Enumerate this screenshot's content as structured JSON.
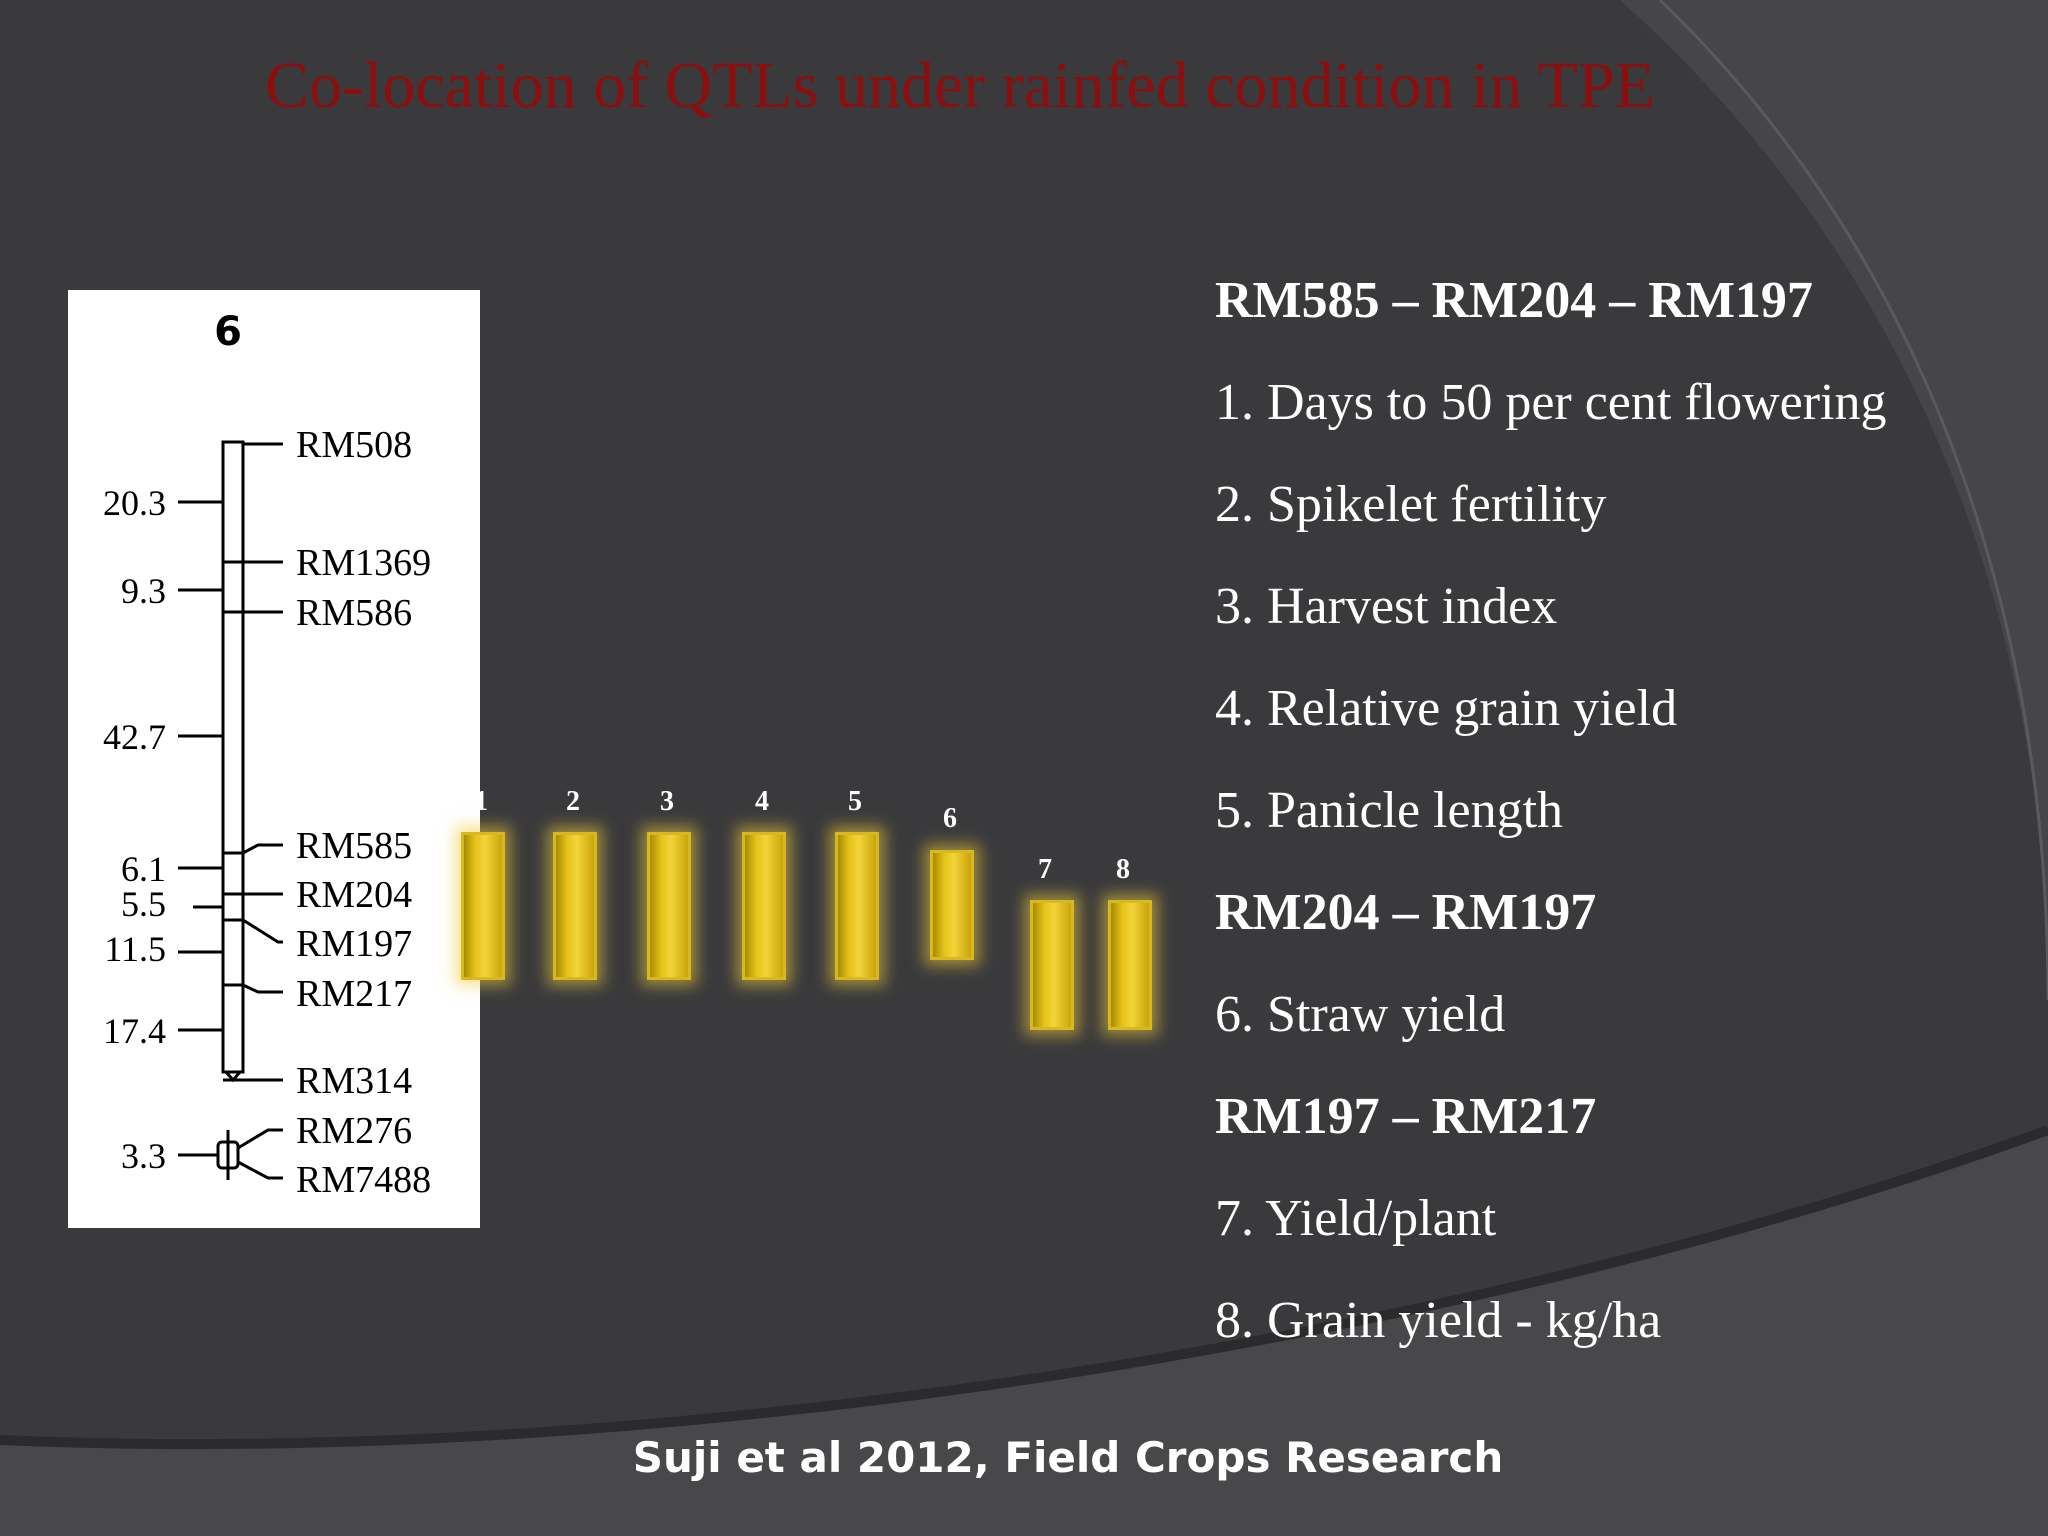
{
  "title": "Co-location of QTLs under rainfed condition in TPE",
  "map": {
    "chromosome": "6",
    "distances": [
      "20.3",
      "9.3",
      "42.7",
      "6.1",
      "5.5",
      "11.5",
      "17.4",
      "3.3"
    ],
    "markers": [
      "RM508",
      "RM1369",
      "RM586",
      "RM585",
      "RM204",
      "RM197",
      "RM217",
      "RM314",
      "RM276",
      "RM7488"
    ]
  },
  "bars": {
    "labels": [
      "1",
      "2",
      "3",
      "4",
      "5",
      "6",
      "7",
      "8"
    ],
    "color": "#e6c21a"
  },
  "legend": [
    {
      "text": "RM585 – RM204 – RM197",
      "bold": true
    },
    {
      "text": "1. Days to 50 per cent flowering",
      "bold": false
    },
    {
      "text": "2. Spikelet fertility",
      "bold": false
    },
    {
      "text": "3. Harvest index",
      "bold": false
    },
    {
      "text": "4. Relative grain yield",
      "bold": false
    },
    {
      "text": "5. Panicle length",
      "bold": false
    },
    {
      "text": "RM204 – RM197",
      "bold": true
    },
    {
      "text": "6. Straw yield",
      "bold": false
    },
    {
      "text": "RM197 – RM217",
      "bold": true
    },
    {
      "text": "7. Yield/plant",
      "bold": false
    },
    {
      "text": "8. Grain yield - kg/ha",
      "bold": false
    }
  ],
  "citation": "Suji et al 2012, Field Crops Research",
  "colors": {
    "background": "#3a3a3c",
    "title": "#8b0f0f",
    "text": "#ffffff",
    "accent": "#e6c21a"
  }
}
